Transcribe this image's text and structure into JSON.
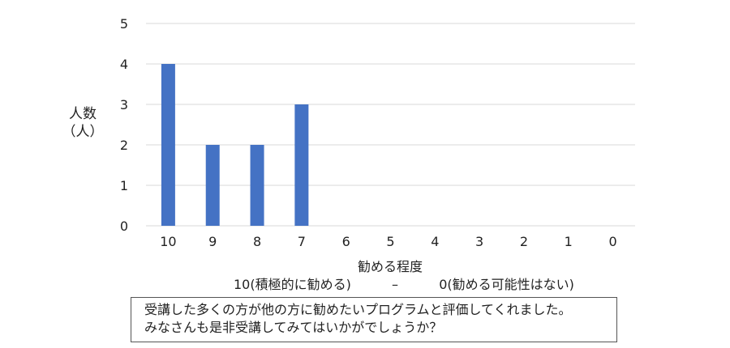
{
  "chart_data": {
    "type": "bar",
    "categories": [
      "10",
      "9",
      "8",
      "7",
      "6",
      "5",
      "4",
      "3",
      "2",
      "1",
      "0"
    ],
    "values": [
      4,
      2,
      2,
      3,
      0,
      0,
      0,
      0,
      0,
      0,
      0
    ],
    "ylim": [
      0,
      5
    ],
    "yticks": [
      "0",
      "1",
      "2",
      "3",
      "4",
      "5"
    ],
    "ylabel": "人数",
    "ylabel_unit": "（人）",
    "xlabel": "勧める程度",
    "xlabel_sub_left": "10(積極的に勧める)",
    "xlabel_sub_dash": "–",
    "xlabel_sub_right": "0(勧める可能性はない)",
    "grid": true,
    "bar_color": "#4472C4"
  },
  "note": {
    "line1": "受講した多くの方が他の方に勧めたいプログラムと評価してくれました。",
    "line2": "みなさんも是非受講してみてはいかがでしょうか？"
  }
}
